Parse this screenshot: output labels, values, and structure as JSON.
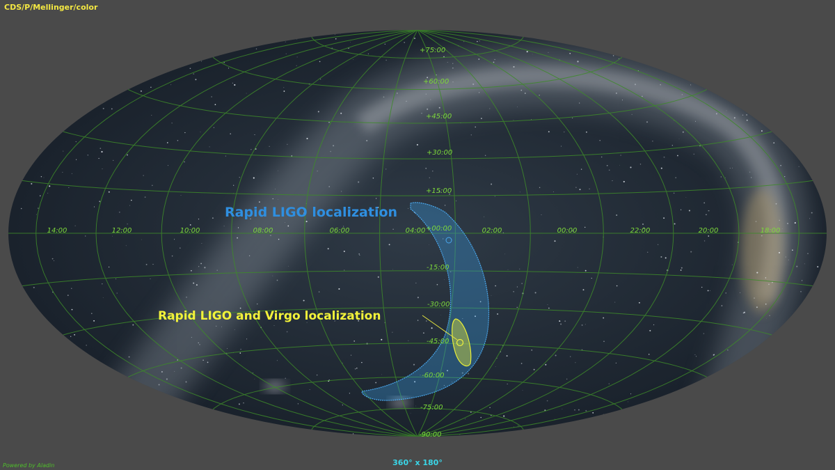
{
  "survey": "CDS/P/Mellinger/color",
  "credit": "Powered by Aladin",
  "field_of_view": "360° x 180°",
  "dec_labels": [
    "+75:00",
    "+60:00",
    "+45:00",
    "+30:00",
    "+15:00",
    "+00:00",
    "-15:00",
    "-30:00",
    "-45:00",
    "-60:00",
    "-75:00",
    "-90:00"
  ],
  "ra_labels": [
    "14:00",
    "12:00",
    "10:00",
    "08:00",
    "06:00",
    "04:00",
    "02:00",
    "00:00",
    "22:00",
    "20:00",
    "18:00"
  ],
  "annotations": [
    "Rapid LIGO localization",
    "Rapid LIGO and Virgo localization"
  ]
}
